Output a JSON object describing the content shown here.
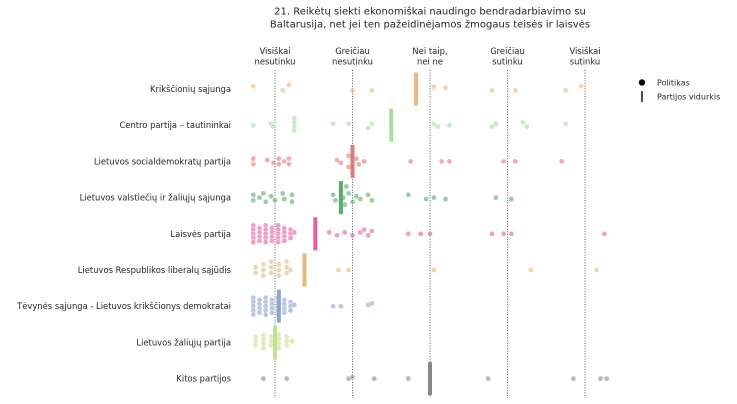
{
  "chart_data": {
    "type": "scatter",
    "title": [
      "21. Reikėtų siekti ekonomiškai naudingo bendradarbiavimo su",
      "Baltarusija, net jei ten pažeidinėjamos žmogaus teisės ir laisvės"
    ],
    "xlabel": "",
    "ylabel": "",
    "xlim": [
      0.6,
      5.4
    ],
    "x_categories": [
      {
        "x": 1,
        "label": [
          "Visiškai",
          "nesutinku"
        ]
      },
      {
        "x": 2,
        "label": [
          "Greičiau",
          "nesutinku"
        ]
      },
      {
        "x": 3,
        "label": [
          "Nei taip,",
          "nei ne"
        ]
      },
      {
        "x": 4,
        "label": [
          "Greičiau",
          "sutinku"
        ]
      },
      {
        "x": 5,
        "label": [
          "Visiškai",
          "sutinku"
        ]
      }
    ],
    "grid": "dotted vertical lines at each answer",
    "legend": {
      "position": "top-right",
      "entries": [
        {
          "marker": "dot",
          "label": "Politikas"
        },
        {
          "marker": "bar",
          "label": "Partijos vidurkis"
        }
      ]
    },
    "parties": [
      {
        "name": "Krikščionių sąjunga",
        "color": "#f5b37e",
        "mean": 2.82,
        "points": [
          [
            0.72,
            0.1
          ],
          [
            1.1,
            -0.05
          ],
          [
            1.18,
            0.15
          ],
          [
            2.0,
            -0.05
          ],
          [
            2.25,
            -0.05
          ],
          [
            3.05,
            0.08
          ],
          [
            3.2,
            0.05
          ],
          [
            3.8,
            -0.05
          ],
          [
            4.1,
            -0.05
          ],
          [
            4.75,
            -0.05
          ],
          [
            4.95,
            0.1
          ]
        ]
      },
      {
        "name": "Centro partija – tautininkai",
        "color": "#a9dba3",
        "mean": 2.5,
        "points": [
          [
            0.72,
            0
          ],
          [
            0.95,
            0.05
          ],
          [
            0.98,
            -0.05
          ],
          [
            1.25,
            0.25
          ],
          [
            1.25,
            0.1
          ],
          [
            1.25,
            -0.05
          ],
          [
            1.25,
            -0.2
          ],
          [
            1.75,
            0.05
          ],
          [
            1.95,
            0.05
          ],
          [
            2.2,
            -0.1
          ],
          [
            2.25,
            0.05
          ],
          [
            3.05,
            0.05
          ],
          [
            3.1,
            -0.05
          ],
          [
            3.25,
            0
          ],
          [
            3.8,
            -0.05
          ],
          [
            3.85,
            0.05
          ],
          [
            4.2,
            0.1
          ],
          [
            4.25,
            -0.05
          ],
          [
            4.75,
            0.05
          ]
        ]
      },
      {
        "name": "Lietuvos socialdemokratų partija",
        "color": "#e07b7b",
        "mean": 2.0,
        "points": [
          [
            0.72,
            0.1
          ],
          [
            0.72,
            -0.1
          ],
          [
            0.9,
            0.05
          ],
          [
            0.98,
            -0.05
          ],
          [
            1.05,
            0.1
          ],
          [
            1.05,
            -0.1
          ],
          [
            1.12,
            0
          ],
          [
            1.18,
            0.1
          ],
          [
            1.18,
            -0.1
          ],
          [
            1.8,
            0.05
          ],
          [
            1.85,
            -0.05
          ],
          [
            1.95,
            0.2
          ],
          [
            1.95,
            -0.2
          ],
          [
            2.05,
            0.1
          ],
          [
            2.08,
            -0.1
          ],
          [
            2.15,
            0
          ],
          [
            2.75,
            0
          ],
          [
            3.15,
            0
          ],
          [
            3.25,
            0
          ],
          [
            3.95,
            0
          ],
          [
            4.1,
            0
          ],
          [
            4.7,
            0
          ]
        ]
      },
      {
        "name": "Lietuvos valstiečių ir žaliųjų sąjunga",
        "color": "#5aab6a",
        "mean": 1.85,
        "points": [
          [
            0.72,
            0.1
          ],
          [
            0.72,
            -0.1
          ],
          [
            0.8,
            0
          ],
          [
            0.85,
            0.15
          ],
          [
            0.88,
            -0.15
          ],
          [
            0.95,
            0.05
          ],
          [
            1.0,
            -0.1
          ],
          [
            1.1,
            0.15
          ],
          [
            1.12,
            -0.05
          ],
          [
            1.22,
            0.1
          ],
          [
            1.22,
            -0.15
          ],
          [
            1.75,
            0.1
          ],
          [
            1.78,
            -0.1
          ],
          [
            1.85,
            0.25
          ],
          [
            1.88,
            0
          ],
          [
            1.9,
            -0.25
          ],
          [
            1.92,
            0.4
          ],
          [
            1.95,
            0.15
          ],
          [
            2.0,
            -0.15
          ],
          [
            2.05,
            0.05
          ],
          [
            2.1,
            -0.05
          ],
          [
            2.2,
            0.1
          ],
          [
            2.25,
            -0.1
          ],
          [
            2.72,
            0.1
          ],
          [
            2.95,
            -0.05
          ],
          [
            3.05,
            0
          ],
          [
            3.2,
            -0.05
          ],
          [
            3.85,
            0
          ],
          [
            4.05,
            -0.05
          ]
        ]
      },
      {
        "name": "Laisvės partija",
        "color": "#e5609e",
        "mean": 1.52,
        "points": [
          [
            0.72,
            0.3
          ],
          [
            0.72,
            0.15
          ],
          [
            0.72,
            0
          ],
          [
            0.72,
            -0.15
          ],
          [
            0.72,
            -0.3
          ],
          [
            0.8,
            0.2
          ],
          [
            0.8,
            0.05
          ],
          [
            0.8,
            -0.1
          ],
          [
            0.8,
            -0.25
          ],
          [
            0.88,
            0.3
          ],
          [
            0.88,
            0.15
          ],
          [
            0.88,
            0
          ],
          [
            0.88,
            -0.15
          ],
          [
            0.88,
            -0.3
          ],
          [
            0.96,
            0.2
          ],
          [
            0.96,
            0.05
          ],
          [
            0.96,
            -0.1
          ],
          [
            0.96,
            -0.25
          ],
          [
            1.04,
            0.3
          ],
          [
            1.04,
            0.15
          ],
          [
            1.04,
            0
          ],
          [
            1.04,
            -0.15
          ],
          [
            1.04,
            -0.3
          ],
          [
            1.12,
            0.2
          ],
          [
            1.12,
            0.05
          ],
          [
            1.12,
            -0.1
          ],
          [
            1.12,
            -0.25
          ],
          [
            1.2,
            0.15
          ],
          [
            1.2,
            0
          ],
          [
            1.2,
            -0.15
          ],
          [
            1.25,
            0.05
          ],
          [
            1.7,
            0.05
          ],
          [
            1.8,
            -0.05
          ],
          [
            1.9,
            0.05
          ],
          [
            2.0,
            -0.05
          ],
          [
            2.1,
            0.05
          ],
          [
            2.15,
            0.15
          ],
          [
            2.2,
            -0.05
          ],
          [
            2.25,
            0.1
          ],
          [
            2.72,
            0
          ],
          [
            2.88,
            0
          ],
          [
            3.0,
            0
          ],
          [
            3.8,
            0
          ],
          [
            3.95,
            0
          ],
          [
            4.05,
            0
          ],
          [
            5.25,
            0
          ]
        ]
      },
      {
        "name": "Lietuvos Respublikos liberalų sąjūdis",
        "color": "#e6b87a",
        "mean": 1.38,
        "points": [
          [
            0.75,
            0.1
          ],
          [
            0.75,
            -0.1
          ],
          [
            0.85,
            0.2
          ],
          [
            0.85,
            0
          ],
          [
            0.85,
            -0.2
          ],
          [
            0.95,
            0.3
          ],
          [
            0.95,
            0.1
          ],
          [
            0.95,
            -0.1
          ],
          [
            1.05,
            0.2
          ],
          [
            1.05,
            0
          ],
          [
            1.05,
            -0.2
          ],
          [
            1.15,
            0.3
          ],
          [
            1.15,
            0.1
          ],
          [
            1.15,
            -0.1
          ],
          [
            1.2,
            0
          ],
          [
            1.82,
            0
          ],
          [
            1.95,
            0
          ],
          [
            3.05,
            0
          ],
          [
            4.3,
            0
          ],
          [
            5.15,
            0
          ]
        ]
      },
      {
        "name": "Tėvynės sąjunga - Lietuvos krikščionys demokratai",
        "color": "#8fa3cf",
        "mean": 1.05,
        "points": [
          [
            0.72,
            0.3
          ],
          [
            0.72,
            0.15
          ],
          [
            0.72,
            0
          ],
          [
            0.72,
            -0.15
          ],
          [
            0.72,
            -0.3
          ],
          [
            0.8,
            0.22
          ],
          [
            0.8,
            0.07
          ],
          [
            0.8,
            -0.08
          ],
          [
            0.8,
            -0.23
          ],
          [
            0.88,
            0.3
          ],
          [
            0.88,
            0.15
          ],
          [
            0.88,
            0
          ],
          [
            0.88,
            -0.15
          ],
          [
            0.88,
            -0.3
          ],
          [
            0.96,
            0.22
          ],
          [
            0.96,
            0.07
          ],
          [
            0.96,
            -0.08
          ],
          [
            0.96,
            -0.23
          ],
          [
            1.04,
            0.3
          ],
          [
            1.04,
            0.15
          ],
          [
            1.04,
            0
          ],
          [
            1.04,
            -0.15
          ],
          [
            1.04,
            -0.3
          ],
          [
            1.12,
            0.22
          ],
          [
            1.12,
            0.07
          ],
          [
            1.12,
            -0.08
          ],
          [
            1.12,
            -0.23
          ],
          [
            1.2,
            0.15
          ],
          [
            1.2,
            0
          ],
          [
            1.2,
            -0.15
          ],
          [
            1.25,
            0.05
          ],
          [
            1.75,
            0
          ],
          [
            1.85,
            0
          ],
          [
            2.2,
            0.05
          ],
          [
            2.25,
            0.1
          ]
        ]
      },
      {
        "name": "Lietuvos žaliųjų partija",
        "color": "#c5de8f",
        "mean": 1.0,
        "points": [
          [
            0.75,
            0.2
          ],
          [
            0.75,
            0.05
          ],
          [
            0.75,
            -0.1
          ],
          [
            0.85,
            0.25
          ],
          [
            0.85,
            0.1
          ],
          [
            0.85,
            -0.05
          ],
          [
            0.85,
            -0.2
          ],
          [
            0.95,
            0.2
          ],
          [
            0.95,
            0.05
          ],
          [
            0.95,
            -0.1
          ],
          [
            1.05,
            0.25
          ],
          [
            1.05,
            0.1
          ],
          [
            1.05,
            -0.05
          ],
          [
            1.05,
            -0.2
          ],
          [
            1.15,
            0.2
          ],
          [
            1.15,
            0.05
          ],
          [
            1.15,
            -0.1
          ],
          [
            1.22,
            0.05
          ]
        ]
      },
      {
        "name": "Kitos partijos",
        "color": "#8a8a8a",
        "mean": 3.0,
        "points": [
          [
            0.85,
            0
          ],
          [
            1.15,
            0
          ],
          [
            1.95,
            0
          ],
          [
            2.0,
            0.05
          ],
          [
            2.28,
            0
          ],
          [
            2.72,
            0
          ],
          [
            3.75,
            0
          ],
          [
            4.85,
            0
          ],
          [
            5.2,
            0
          ],
          [
            5.28,
            0
          ]
        ]
      }
    ]
  }
}
